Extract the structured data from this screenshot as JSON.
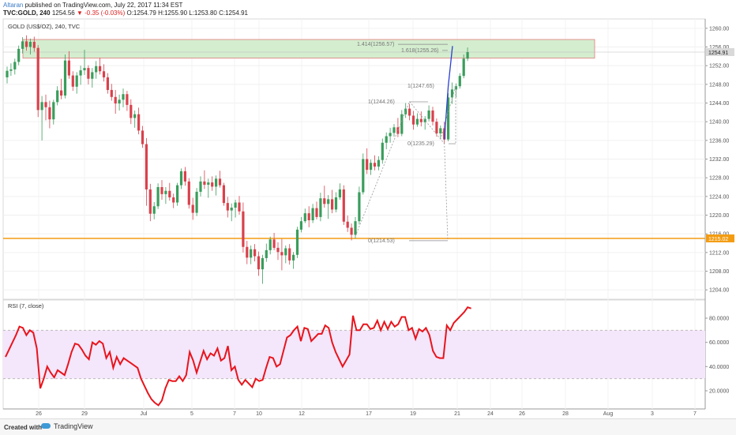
{
  "header": {
    "author": "Altaran",
    "published": "published on TradingView.com, July 22, 2017 11:34 EST",
    "symbol": "TVC:GOLD, 240",
    "last": "1254.56",
    "change": "▼ -0.35 (-0.03%)",
    "open": "O:1254.79",
    "high": "H:1255.90",
    "low": "L:1253.80",
    "close": "C:1254.91"
  },
  "footer": {
    "created": "Created with",
    "brand": "TradingView"
  },
  "chart_data": [
    {
      "type": "candlestick",
      "title": "GOLD (US$/OZ), 240, TVC",
      "ylim": [
        1202,
        1262
      ],
      "y_ticks": [
        "1204.00",
        "1208.00",
        "1212.00",
        "1216.00",
        "1220.00",
        "1224.00",
        "1228.00",
        "1232.00",
        "1236.00",
        "1240.00",
        "1244.00",
        "1248.00",
        "1252.00",
        "1256.00",
        "1260.00"
      ],
      "x_ticks": [
        "26",
        "29",
        "Jul",
        "5",
        "7",
        "10",
        "12",
        "17",
        "19",
        "21",
        "24",
        "26",
        "28",
        "Aug",
        "3",
        "7"
      ],
      "last_price_label": "1254.91",
      "horizontal_level_label": "1215.02",
      "horizontal_level": 1215.02,
      "resistance_zone": [
        1253.6,
        1257.6
      ],
      "fib_labels": [
        {
          "label": "1.414(1256.57)",
          "value": 1256.57
        },
        {
          "label": "1.618(1255.26)",
          "value": 1255.26
        },
        {
          "label": "1(1247.65)",
          "value": 1247.65
        },
        {
          "label": "1(1244.26)",
          "value": 1244.26
        },
        {
          "label": "0(1235.29)",
          "value": 1235.29
        },
        {
          "label": "0(1214.53)",
          "value": 1214.53
        }
      ],
      "candles": [
        [
          1249.5,
          1251.8,
          1248.2,
          1250.9
        ],
        [
          1250.9,
          1252.5,
          1249.8,
          1251.2
        ],
        [
          1251.2,
          1253.5,
          1250.1,
          1252.8
        ],
        [
          1252.8,
          1256.3,
          1252.1,
          1255.6
        ],
        [
          1255.6,
          1258.1,
          1254.6,
          1257.2
        ],
        [
          1257.2,
          1258.5,
          1255.2,
          1256.0
        ],
        [
          1256.0,
          1257.8,
          1254.4,
          1257.1
        ],
        [
          1257.1,
          1258.2,
          1255.0,
          1255.8
        ],
        [
          1255.8,
          1256.4,
          1241.0,
          1242.5
        ],
        [
          1242.5,
          1245.5,
          1236.0,
          1244.2
        ],
        [
          1244.2,
          1245.8,
          1240.3,
          1243.1
        ],
        [
          1243.1,
          1244.5,
          1238.6,
          1240.5
        ],
        [
          1240.5,
          1244.7,
          1239.4,
          1244.2
        ],
        [
          1244.2,
          1247.6,
          1243.5,
          1246.7
        ],
        [
          1246.7,
          1249.2,
          1244.8,
          1245.6
        ],
        [
          1245.6,
          1254.4,
          1245.0,
          1253.1
        ],
        [
          1253.1,
          1255.1,
          1249.2,
          1249.9
        ],
        [
          1249.9,
          1250.8,
          1246.6,
          1247.5
        ],
        [
          1247.5,
          1250.6,
          1246.0,
          1249.9
        ],
        [
          1249.9,
          1252.0,
          1247.9,
          1251.0
        ],
        [
          1251.0,
          1255.4,
          1250.0,
          1251.5
        ],
        [
          1251.5,
          1252.1,
          1248.0,
          1249.2
        ],
        [
          1249.2,
          1251.5,
          1247.3,
          1250.6
        ],
        [
          1250.6,
          1253.0,
          1249.2,
          1251.9
        ],
        [
          1251.9,
          1253.7,
          1250.1,
          1250.8
        ],
        [
          1250.8,
          1252.3,
          1248.6,
          1249.5
        ],
        [
          1249.5,
          1250.4,
          1246.0,
          1246.8
        ],
        [
          1246.8,
          1248.1,
          1244.5,
          1245.3
        ],
        [
          1245.3,
          1246.8,
          1241.7,
          1243.9
        ],
        [
          1243.9,
          1245.8,
          1242.4,
          1244.7
        ],
        [
          1244.7,
          1247.1,
          1243.1,
          1245.9
        ],
        [
          1245.9,
          1246.6,
          1242.3,
          1243.6
        ],
        [
          1243.6,
          1244.8,
          1239.5,
          1240.8
        ],
        [
          1240.8,
          1242.4,
          1238.7,
          1241.6
        ],
        [
          1241.6,
          1243.0,
          1237.3,
          1238.1
        ],
        [
          1238.1,
          1239.1,
          1234.4,
          1235.2
        ],
        [
          1235.2,
          1236.5,
          1222.0,
          1225.5
        ],
        [
          1225.5,
          1226.7,
          1218.7,
          1220.3
        ],
        [
          1220.3,
          1222.8,
          1219.1,
          1221.9
        ],
        [
          1221.9,
          1226.8,
          1221.3,
          1226.0
        ],
        [
          1226.0,
          1227.5,
          1223.3,
          1224.5
        ],
        [
          1224.5,
          1226.0,
          1222.4,
          1225.2
        ],
        [
          1225.2,
          1226.9,
          1223.1,
          1223.8
        ],
        [
          1223.8,
          1224.6,
          1221.5,
          1222.7
        ],
        [
          1222.7,
          1226.9,
          1222.0,
          1226.4
        ],
        [
          1226.4,
          1230.0,
          1225.6,
          1229.4
        ],
        [
          1229.4,
          1230.3,
          1226.3,
          1227.2
        ],
        [
          1227.2,
          1227.9,
          1221.4,
          1222.2
        ],
        [
          1222.2,
          1223.7,
          1219.0,
          1220.5
        ],
        [
          1220.5,
          1225.8,
          1219.8,
          1225.0
        ],
        [
          1225.0,
          1228.3,
          1224.0,
          1227.2
        ],
        [
          1227.2,
          1229.6,
          1225.6,
          1226.5
        ],
        [
          1226.5,
          1227.8,
          1223.7,
          1227.0
        ],
        [
          1227.0,
          1228.3,
          1225.2,
          1226.1
        ],
        [
          1226.1,
          1228.5,
          1224.2,
          1227.8
        ],
        [
          1227.8,
          1229.5,
          1225.9,
          1226.4
        ],
        [
          1226.4,
          1226.9,
          1222.0,
          1222.6
        ],
        [
          1222.6,
          1223.9,
          1219.5,
          1221.0
        ],
        [
          1221.0,
          1222.5,
          1218.7,
          1221.6
        ],
        [
          1221.6,
          1223.3,
          1219.5,
          1222.7
        ],
        [
          1222.7,
          1224.1,
          1220.1,
          1220.8
        ],
        [
          1220.8,
          1222.7,
          1212.0,
          1213.2
        ],
        [
          1213.2,
          1214.5,
          1209.5,
          1210.9
        ],
        [
          1210.9,
          1213.5,
          1209.5,
          1212.7
        ],
        [
          1212.7,
          1213.8,
          1210.1,
          1211.2
        ],
        [
          1211.2,
          1212.2,
          1207.0,
          1208.4
        ],
        [
          1208.4,
          1211.5,
          1205.3,
          1210.8
        ],
        [
          1210.8,
          1213.9,
          1210.0,
          1212.5
        ],
        [
          1212.5,
          1215.4,
          1211.6,
          1214.8
        ],
        [
          1214.8,
          1216.2,
          1212.5,
          1213.0
        ],
        [
          1213.0,
          1214.2,
          1210.4,
          1212.1
        ],
        [
          1212.1,
          1214.9,
          1208.2,
          1211.4
        ],
        [
          1211.4,
          1213.5,
          1209.7,
          1212.9
        ],
        [
          1212.9,
          1213.8,
          1209.4,
          1210.3
        ],
        [
          1210.3,
          1212.1,
          1208.5,
          1211.5
        ],
        [
          1211.5,
          1217.5,
          1210.8,
          1216.9
        ],
        [
          1216.9,
          1219.6,
          1216.3,
          1218.7
        ],
        [
          1218.7,
          1221.4,
          1218.3,
          1220.4
        ],
        [
          1220.4,
          1221.9,
          1217.4,
          1218.9
        ],
        [
          1218.9,
          1222.4,
          1218.3,
          1221.5
        ],
        [
          1221.5,
          1222.9,
          1219.1,
          1219.6
        ],
        [
          1219.6,
          1224.8,
          1218.7,
          1223.6
        ],
        [
          1223.6,
          1226.3,
          1221.6,
          1222.4
        ],
        [
          1222.4,
          1224.3,
          1219.2,
          1223.4
        ],
        [
          1223.4,
          1225.4,
          1220.4,
          1221.2
        ],
        [
          1221.2,
          1224.9,
          1220.6,
          1223.8
        ],
        [
          1223.8,
          1226.8,
          1223.3,
          1225.5
        ],
        [
          1225.5,
          1226.4,
          1217.9,
          1218.6
        ],
        [
          1218.6,
          1219.9,
          1216.4,
          1217.3
        ],
        [
          1217.3,
          1218.2,
          1214.6,
          1215.8
        ],
        [
          1215.8,
          1219.6,
          1215.0,
          1218.7
        ],
        [
          1218.7,
          1226.1,
          1218.0,
          1224.9
        ],
        [
          1224.9,
          1233.2,
          1224.4,
          1232.0
        ],
        [
          1232.0,
          1234.3,
          1228.8,
          1229.7
        ],
        [
          1229.7,
          1231.9,
          1228.6,
          1231.2
        ],
        [
          1231.2,
          1232.8,
          1229.6,
          1230.4
        ],
        [
          1230.4,
          1232.6,
          1229.6,
          1231.8
        ],
        [
          1231.8,
          1236.4,
          1231.0,
          1235.5
        ],
        [
          1235.5,
          1237.7,
          1234.1,
          1236.9
        ],
        [
          1236.9,
          1238.7,
          1235.5,
          1237.6
        ],
        [
          1237.6,
          1239.5,
          1236.8,
          1238.8
        ],
        [
          1238.8,
          1240.8,
          1236.7,
          1237.4
        ],
        [
          1237.4,
          1242.5,
          1236.9,
          1241.6
        ],
        [
          1241.6,
          1244.0,
          1240.8,
          1242.8
        ],
        [
          1242.8,
          1243.8,
          1240.3,
          1241.3
        ],
        [
          1241.3,
          1242.3,
          1238.3,
          1239.4
        ],
        [
          1239.4,
          1241.8,
          1238.9,
          1240.6
        ],
        [
          1240.6,
          1242.2,
          1239.0,
          1239.9
        ],
        [
          1239.9,
          1241.2,
          1238.3,
          1240.6
        ],
        [
          1240.6,
          1243.5,
          1240.1,
          1242.4
        ],
        [
          1242.4,
          1243.2,
          1239.2,
          1240.0
        ],
        [
          1240.0,
          1240.7,
          1236.8,
          1237.5
        ],
        [
          1237.5,
          1239.2,
          1236.5,
          1238.6
        ],
        [
          1238.6,
          1240.0,
          1235.3,
          1236.2
        ],
        [
          1236.2,
          1246.1,
          1235.8,
          1245.2
        ],
        [
          1245.2,
          1248.4,
          1243.8,
          1246.9
        ],
        [
          1246.9,
          1248.2,
          1245.2,
          1247.6
        ],
        [
          1247.6,
          1250.4,
          1247.1,
          1249.8
        ],
        [
          1249.8,
          1254.4,
          1249.3,
          1253.5
        ],
        [
          1253.5,
          1255.9,
          1253.0,
          1254.9
        ]
      ]
    },
    {
      "type": "line",
      "title": "RSI (7, close)",
      "ylim": [
        5,
        95
      ],
      "y_ticks": [
        "20.0000",
        "40.0000",
        "60.0000",
        "80.0000"
      ],
      "band": [
        30,
        70
      ],
      "values": [
        48,
        54,
        60,
        66,
        73,
        72,
        66,
        70,
        68,
        55,
        22,
        30,
        40,
        35,
        31,
        37,
        35,
        33,
        42,
        52,
        59,
        58,
        54,
        49,
        46,
        60,
        58,
        61,
        59,
        47,
        52,
        39,
        48,
        42,
        47,
        45,
        43,
        41,
        39,
        30,
        24,
        18,
        13,
        10,
        8,
        12,
        22,
        29,
        28,
        28,
        32,
        28,
        33,
        52,
        45,
        35,
        44,
        53,
        46,
        51,
        49,
        55,
        45,
        47,
        57,
        37,
        40,
        29,
        25,
        29,
        26,
        23,
        30,
        28,
        29,
        39,
        48,
        47,
        40,
        42,
        53,
        64,
        66,
        70,
        73,
        61,
        72,
        71,
        61,
        64,
        67,
        67,
        74,
        72,
        60,
        52,
        46,
        40,
        45,
        50,
        82,
        70,
        70,
        75,
        75,
        71,
        72,
        78,
        70,
        77,
        71,
        77,
        73,
        75,
        81,
        81,
        70,
        72,
        63,
        71,
        69,
        72,
        66,
        53,
        48,
        47,
        47,
        74,
        70,
        76,
        79,
        82,
        85,
        89,
        88
      ]
    }
  ]
}
